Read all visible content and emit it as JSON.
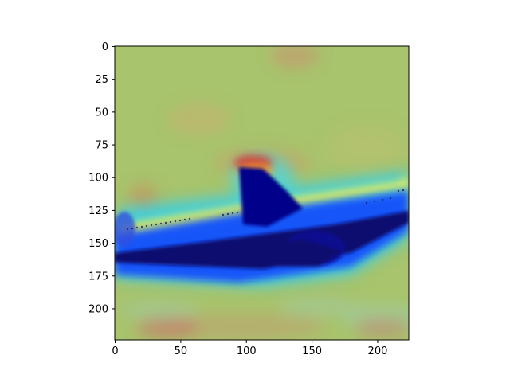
{
  "chart_data": {
    "type": "heatmap",
    "title": "",
    "xlabel": "",
    "ylabel": "",
    "xlim": [
      0,
      224
    ],
    "ylim": [
      224,
      0
    ],
    "x_ticks": [
      0,
      50,
      100,
      150,
      200
    ],
    "y_ticks": [
      0,
      25,
      50,
      75,
      100,
      125,
      150,
      175,
      200
    ],
    "grid": false,
    "legend": "none",
    "overlay": "jet colormap attention heatmap blended over photo of airplane",
    "colors": {
      "low": "#00008b",
      "mid_low": "#00bfff",
      "mid": "#9acd32",
      "mid_high": "#ffff33",
      "high": "#cc2222",
      "background_field": "#a6c46a"
    }
  }
}
